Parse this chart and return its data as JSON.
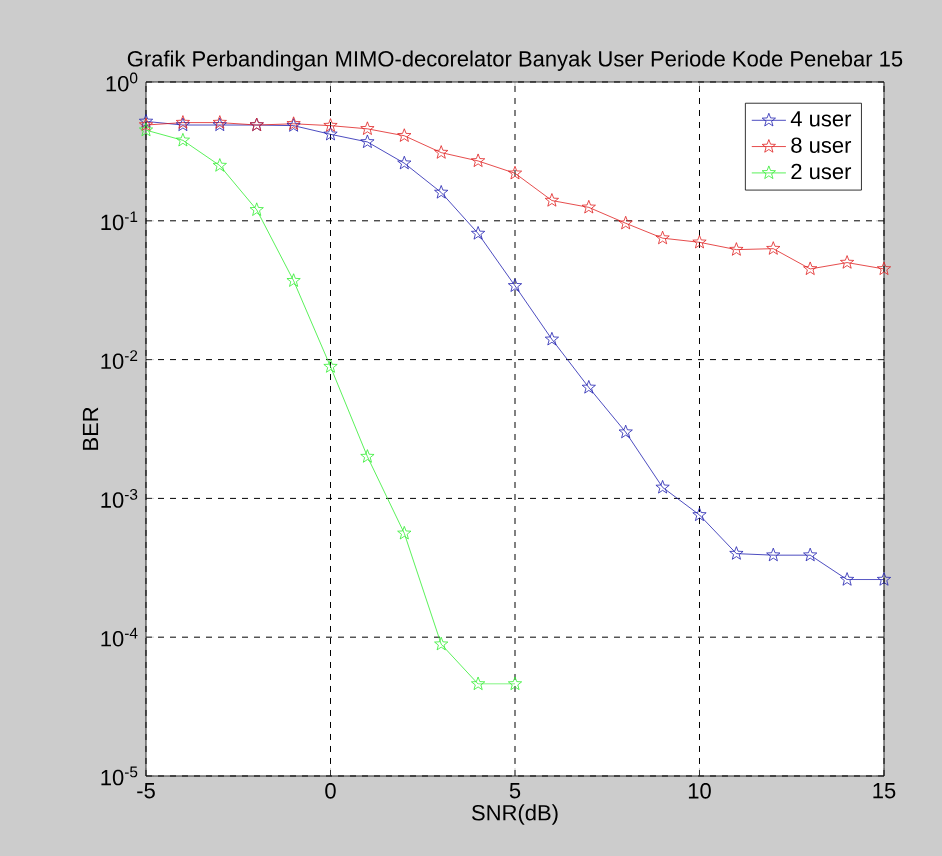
{
  "chart_data": {
    "type": "line",
    "title": "Grafik Perbandingan MIMO-decorelator Banyak User Periode Kode Penebar 15",
    "xlabel": "SNR(dB)",
    "ylabel": "BER",
    "x": [
      -5,
      -4,
      -3,
      -2,
      -1,
      0,
      1,
      2,
      3,
      4,
      5,
      6,
      7,
      8,
      9,
      10,
      11,
      12,
      13,
      14,
      15
    ],
    "series": [
      {
        "name": "4 user",
        "color": "#2020b0",
        "values": [
          0.52,
          0.49,
          0.49,
          0.49,
          0.485,
          0.42,
          0.37,
          0.26,
          0.16,
          0.081,
          0.034,
          0.014,
          0.0063,
          0.003,
          0.0012,
          0.00076,
          0.0004,
          0.00039,
          0.00039,
          0.00026,
          0.00026
        ]
      },
      {
        "name": "8 user",
        "color": "#e02020",
        "values": [
          0.49,
          0.51,
          0.51,
          0.49,
          0.5,
          0.485,
          0.46,
          0.41,
          0.31,
          0.27,
          0.22,
          0.14,
          0.125,
          0.096,
          0.075,
          0.07,
          0.062,
          0.063,
          0.045,
          0.05,
          0.045
        ]
      },
      {
        "name": "2 user",
        "color": "#30ee30",
        "values": [
          0.45,
          0.38,
          0.25,
          0.12,
          0.037,
          0.0089,
          0.002,
          0.00056,
          8.9e-05,
          4.6e-05,
          4.6e-05,
          null,
          null,
          null,
          null,
          null,
          null,
          null,
          null,
          null,
          null
        ]
      }
    ],
    "xlim": [
      -5,
      15
    ],
    "ylim": [
      1e-05,
      1
    ],
    "xticks": [
      -5,
      0,
      5,
      10,
      15
    ],
    "yticks": [
      {
        "value": 1e-05,
        "label": "10$^{-5}$"
      },
      {
        "value": 0.0001,
        "label": "10$^{-4}$"
      },
      {
        "value": 0.001,
        "label": "10$^{-3}$"
      },
      {
        "value": 0.01,
        "label": "10$^{-2}$"
      },
      {
        "value": 0.1,
        "label": "10$^{-1}$"
      },
      {
        "value": 1,
        "label": "10$^{0}$"
      }
    ],
    "log": "y",
    "grid": true,
    "legend": "top right",
    "marker": "star",
    "line_style": "solid"
  }
}
